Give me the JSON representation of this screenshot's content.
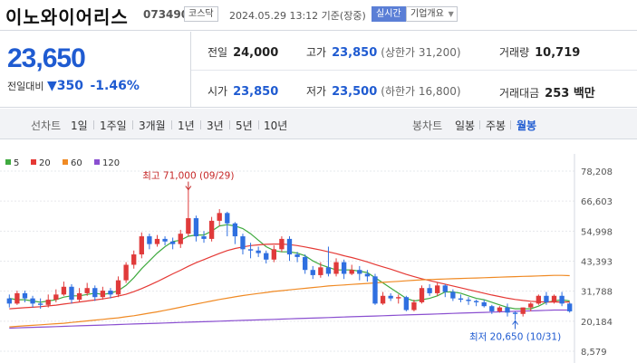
{
  "header": {
    "name": "이노와이어리스",
    "code": "073490",
    "market": "코스닥",
    "datetime": "2024.05.29 13:12  기준(장중)",
    "live_label": "실시간",
    "info_label": "기업개요"
  },
  "quote": {
    "price": "23,650",
    "change_label": "전일대비",
    "change_symbol": "▼",
    "change_value": "350",
    "change_pct": "-1.46%",
    "prev_close_label": "전일",
    "prev_close": "24,000",
    "open_label": "시가",
    "open": "23,850",
    "high_label": "고가",
    "high": "23,850",
    "upper_limit": "(상한가 31,200)",
    "low_label": "저가",
    "low": "23,500",
    "lower_limit": "(하한가 16,800)",
    "volume_label": "거래량",
    "volume": "10,719",
    "amount_label": "거래대금",
    "amount": "253 백만"
  },
  "periods": {
    "line_label": "선차트",
    "line_items": [
      "1일",
      "1주일",
      "3개월",
      "1년",
      "3년",
      "5년",
      "10년"
    ],
    "candle_label": "봉차트",
    "candle_items": [
      "일봉",
      "주봉",
      "월봉"
    ],
    "active": "월봉"
  },
  "chart_data": {
    "type": "candlestick",
    "legend": [
      {
        "name": "5",
        "color": "#3faa3f"
      },
      {
        "name": "20",
        "color": "#e53935"
      },
      {
        "name": "60",
        "color": "#f08a24"
      },
      {
        "name": "120",
        "color": "#8a4fd0"
      }
    ],
    "yticks": [
      "78,208",
      "66,603",
      "54,998",
      "43,393",
      "31,788",
      "20,184",
      "8,579"
    ],
    "ylim": [
      8579,
      78208
    ],
    "annotations": {
      "high": "최고 71,000 (09/29)",
      "low": "최저 20,650 (10/31)"
    },
    "candles": [
      [
        29000,
        27000,
        30500,
        25500
      ],
      [
        27000,
        31000,
        32000,
        26500
      ],
      [
        31000,
        29000,
        32000,
        27500
      ],
      [
        29000,
        27000,
        30000,
        25500
      ],
      [
        27000,
        26500,
        29000,
        25000
      ],
      [
        26500,
        28500,
        30500,
        25500
      ],
      [
        28500,
        30500,
        32500,
        27500
      ],
      [
        30500,
        33500,
        35500,
        30000
      ],
      [
        33500,
        28500,
        34500,
        27000
      ],
      [
        28500,
        31000,
        33000,
        27500
      ],
      [
        31000,
        33000,
        35000,
        30000
      ],
      [
        33000,
        29500,
        34000,
        28000
      ],
      [
        29500,
        32000,
        33500,
        28500
      ],
      [
        32000,
        30500,
        33000,
        29000
      ],
      [
        30500,
        36000,
        37500,
        29500
      ],
      [
        36000,
        42000,
        43000,
        35000
      ],
      [
        42000,
        46000,
        47500,
        40500
      ],
      [
        46000,
        53000,
        54500,
        44500
      ],
      [
        53000,
        50000,
        54000,
        48000
      ],
      [
        50000,
        52000,
        53500,
        49000
      ],
      [
        52000,
        51000,
        53000,
        49500
      ],
      [
        51000,
        50000,
        52500,
        48000
      ],
      [
        50000,
        54000,
        55500,
        48500
      ],
      [
        54000,
        60000,
        71000,
        53000
      ],
      [
        60000,
        53000,
        61000,
        51000
      ],
      [
        53000,
        52000,
        55000,
        50500
      ],
      [
        52000,
        59000,
        60500,
        51000
      ],
      [
        59000,
        62000,
        63500,
        57000
      ],
      [
        62000,
        58000,
        62500,
        53000
      ],
      [
        58000,
        53000,
        58500,
        50000
      ],
      [
        53000,
        48000,
        54000,
        46000
      ],
      [
        48000,
        47500,
        50500,
        44500
      ],
      [
        47500,
        46500,
        49000,
        45000
      ],
      [
        46500,
        44000,
        47500,
        42500
      ],
      [
        44000,
        48000,
        49500,
        43000
      ],
      [
        48000,
        52000,
        53000,
        47000
      ],
      [
        52000,
        46000,
        53000,
        43500
      ],
      [
        46000,
        45000,
        47000,
        43000
      ],
      [
        45000,
        40000,
        46000,
        38500
      ],
      [
        40000,
        38000,
        41500,
        36500
      ],
      [
        38000,
        41000,
        43000,
        37000
      ],
      [
        41000,
        38500,
        49000,
        37500
      ],
      [
        38500,
        43000,
        44500,
        37500
      ],
      [
        43000,
        38500,
        44000,
        36500
      ],
      [
        38500,
        40000,
        42000,
        38000
      ],
      [
        40000,
        38500,
        41500,
        36000
      ],
      [
        38500,
        37500,
        40000,
        35500
      ],
      [
        37500,
        27000,
        38500,
        26500
      ],
      [
        27000,
        30000,
        31500,
        26500
      ],
      [
        30000,
        29000,
        31000,
        28000
      ],
      [
        29000,
        29500,
        30500,
        27000
      ],
      [
        29500,
        24500,
        30000,
        24000
      ],
      [
        24500,
        27500,
        28500,
        24000
      ],
      [
        27500,
        33000,
        34000,
        27000
      ],
      [
        33000,
        31000,
        34500,
        30000
      ],
      [
        31000,
        34000,
        35000,
        30000
      ],
      [
        34000,
        31500,
        34500,
        29500
      ],
      [
        31500,
        29000,
        32500,
        28000
      ],
      [
        29000,
        28500,
        30500,
        27500
      ],
      [
        28500,
        28000,
        29500,
        26500
      ],
      [
        28000,
        27500,
        28500,
        26000
      ],
      [
        27500,
        26000,
        28500,
        25500
      ],
      [
        26000,
        24000,
        26500,
        23000
      ],
      [
        24000,
        25500,
        26000,
        23500
      ],
      [
        25500,
        23500,
        27000,
        22000
      ],
      [
        23500,
        23000,
        24000,
        20650
      ],
      [
        23000,
        25500,
        25500,
        22000
      ],
      [
        25500,
        27000,
        27500,
        24000
      ],
      [
        27000,
        30000,
        30500,
        26500
      ],
      [
        30000,
        27500,
        31500,
        26500
      ],
      [
        27500,
        30000,
        30500,
        27000
      ],
      [
        30000,
        27000,
        31500,
        26000
      ],
      [
        27000,
        24000,
        27500,
        23500
      ]
    ],
    "ma": {
      "5": [
        29000,
        28500,
        28500,
        28000,
        27500,
        28000,
        28500,
        29500,
        30000,
        30000,
        30500,
        31000,
        30500,
        31000,
        32000,
        34000,
        37000,
        40500,
        43500,
        46500,
        49000,
        51000,
        51500,
        53000,
        53500,
        53500,
        55000,
        57000,
        57500,
        57000,
        56000,
        54000,
        51500,
        49000,
        47500,
        47000,
        47000,
        46500,
        45500,
        43500,
        42000,
        41000,
        40000,
        40000,
        40000,
        39500,
        39000,
        37000,
        35000,
        33000,
        31000,
        29000,
        28000,
        28500,
        29000,
        30000,
        31500,
        31500,
        31000,
        30000,
        29000,
        28500,
        27500,
        26500,
        25500,
        25000,
        25000,
        25000,
        26000,
        27500,
        28000,
        28500,
        28000
      ],
      "20": [
        25000,
        25200,
        25400,
        25600,
        25800,
        26100,
        26400,
        26800,
        27200,
        27600,
        28000,
        28400,
        28800,
        29300,
        29900,
        30600,
        31600,
        32800,
        34100,
        35500,
        37000,
        38500,
        39900,
        41400,
        42800,
        44000,
        45200,
        46400,
        47500,
        48300,
        48900,
        49400,
        49700,
        49900,
        50000,
        50000,
        49800,
        49400,
        48900,
        48300,
        47700,
        47000,
        46300,
        45500,
        44800,
        44000,
        43100,
        42100,
        41200,
        40300,
        39300,
        38300,
        37400,
        36600,
        35900,
        35200,
        34500,
        33800,
        33100,
        32400,
        31700,
        31000,
        30300,
        29700,
        29100,
        28600,
        28200,
        27900,
        27700,
        27600,
        27600,
        27600,
        27600
      ],
      "60": [
        18000,
        18200,
        18400,
        18600,
        18800,
        19000,
        19200,
        19400,
        19700,
        20000,
        20300,
        20600,
        20900,
        21200,
        21500,
        21900,
        22300,
        22800,
        23300,
        23800,
        24400,
        25000,
        25600,
        26200,
        26800,
        27400,
        28000,
        28600,
        29100,
        29600,
        30100,
        30500,
        30900,
        31300,
        31700,
        32000,
        32300,
        32600,
        32900,
        33200,
        33500,
        33800,
        34000,
        34200,
        34400,
        34600,
        34800,
        35000,
        35200,
        35400,
        35600,
        35800,
        36000,
        36200,
        36300,
        36400,
        36500,
        36600,
        36700,
        36800,
        36900,
        37000,
        37100,
        37200,
        37300,
        37400,
        37500,
        37600,
        37700,
        37800,
        37900,
        37900,
        37800
      ],
      "120": [
        17500,
        17600,
        17700,
        17800,
        17900,
        18000,
        18100,
        18200,
        18300,
        18400,
        18500,
        18600,
        18700,
        18800,
        18900,
        19000,
        19100,
        19200,
        19300,
        19400,
        19500,
        19600,
        19700,
        19800,
        19900,
        20000,
        20100,
        20200,
        20300,
        20400,
        20500,
        20600,
        20700,
        20800,
        20900,
        21000,
        21100,
        21200,
        21300,
        21400,
        21500,
        21600,
        21700,
        21800,
        21900,
        22000,
        22100,
        22200,
        22300,
        22400,
        22500,
        22600,
        22700,
        22800,
        22900,
        23000,
        23100,
        23200,
        23300,
        23400,
        23500,
        23600,
        23700,
        23800,
        23900,
        24000,
        24100,
        24200,
        24300,
        24400,
        24500,
        24500,
        24500
      ]
    }
  }
}
